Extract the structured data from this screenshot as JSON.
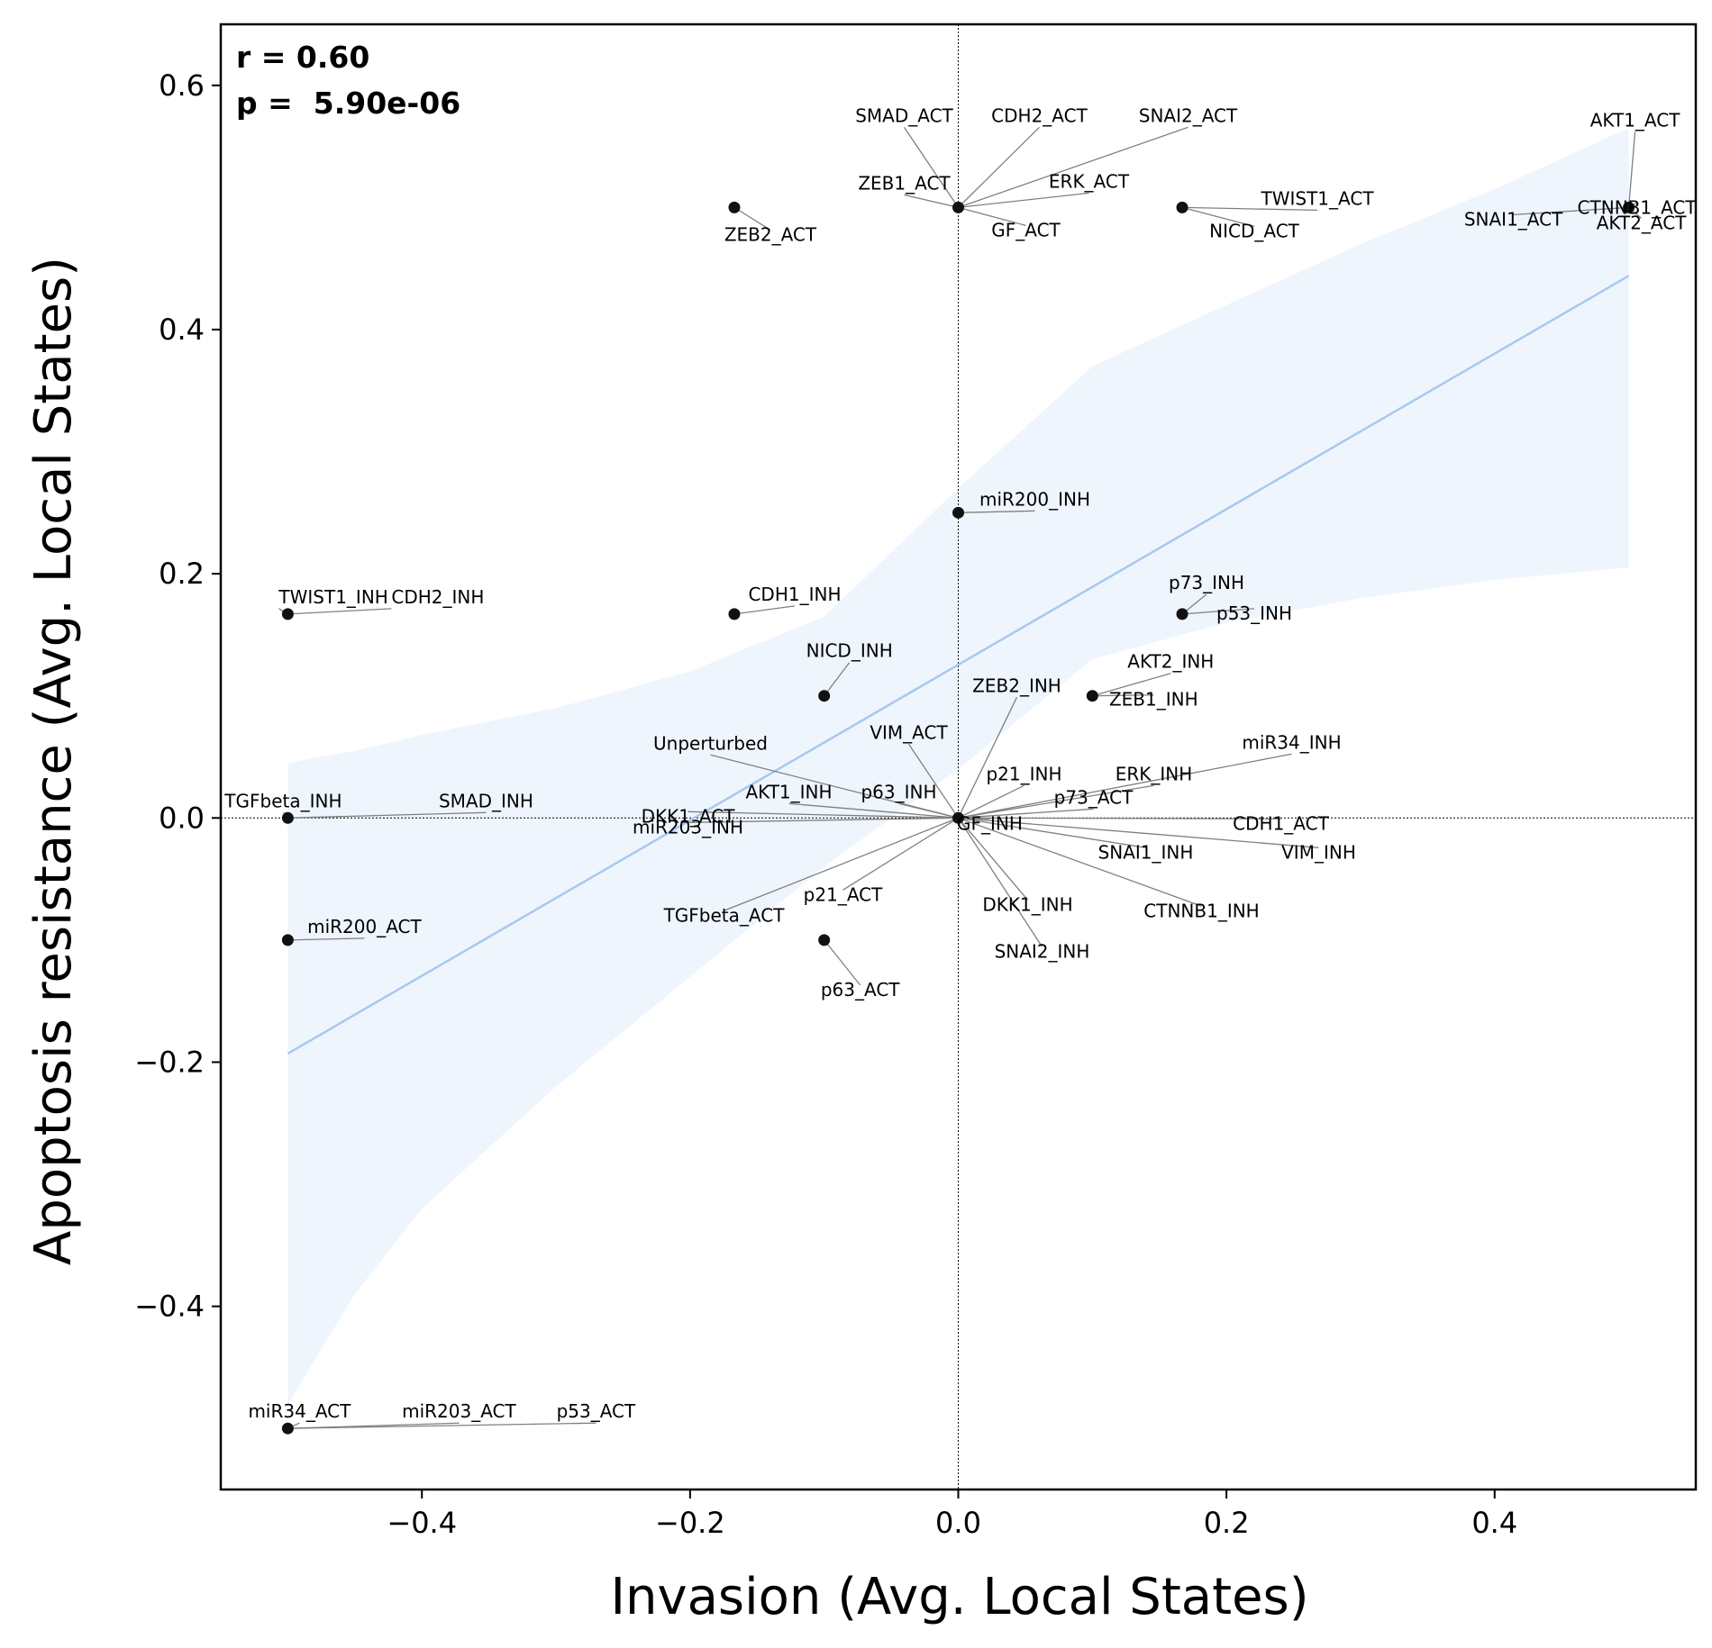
{
  "chart_data": {
    "type": "scatter",
    "title": "",
    "xlabel": "Invasion (Avg. Local States)",
    "ylabel": "Apoptosis resistance (Avg. Local States)",
    "xlim": [
      -0.55,
      0.55
    ],
    "ylim": [
      -0.55,
      0.65
    ],
    "xticks": [
      -0.4,
      -0.2,
      0.0,
      0.2,
      0.4
    ],
    "yticks": [
      -0.4,
      -0.2,
      0.0,
      0.2,
      0.4,
      0.6
    ],
    "xtick_labels": [
      "−0.4",
      "−0.2",
      "0.0",
      "0.2",
      "0.4"
    ],
    "ytick_labels": [
      "−0.4",
      "−0.2",
      "0.0",
      "0.2",
      "0.4",
      "0.6"
    ],
    "annotation_lines": [
      {
        "text": "r = 0.60"
      },
      {
        "text": "p =  5.90e-06"
      }
    ],
    "reference_lines": {
      "x": 0.0,
      "y": 0.0
    },
    "regression": {
      "line": {
        "x": [
          -0.5,
          0.5
        ],
        "y": [
          -0.193,
          0.444
        ],
        "color": "#a8c8f0"
      },
      "ci_band": {
        "color": "#dce8fb",
        "x": [
          -0.5,
          -0.45,
          -0.4,
          -0.3,
          -0.2,
          -0.1,
          0.0,
          0.1,
          0.2,
          0.3,
          0.4,
          0.5
        ],
        "lower": [
          -0.48,
          -0.39,
          -0.32,
          -0.22,
          -0.13,
          -0.04,
          0.04,
          0.13,
          0.16,
          0.18,
          0.195,
          0.205
        ],
        "upper": [
          0.045,
          0.055,
          0.068,
          0.09,
          0.12,
          0.165,
          0.27,
          0.37,
          0.42,
          0.47,
          0.515,
          0.565
        ]
      }
    },
    "points": [
      {
        "label": "SMAD_ACT",
        "x": 0.0,
        "y": 0.5
      },
      {
        "label": "CDH2_ACT",
        "x": 0.0,
        "y": 0.5
      },
      {
        "label": "SNAI2_ACT",
        "x": 0.0,
        "y": 0.5
      },
      {
        "label": "ZEB1_ACT",
        "x": 0.0,
        "y": 0.5
      },
      {
        "label": "ERK_ACT",
        "x": 0.0,
        "y": 0.5
      },
      {
        "label": "GF_ACT",
        "x": 0.0,
        "y": 0.5
      },
      {
        "label": "ZEB2_ACT",
        "x": -0.167,
        "y": 0.5
      },
      {
        "label": "TWIST1_ACT",
        "x": 0.167,
        "y": 0.5
      },
      {
        "label": "NICD_ACT",
        "x": 0.167,
        "y": 0.5
      },
      {
        "label": "AKT1_ACT",
        "x": 0.5,
        "y": 0.5
      },
      {
        "label": "CTNNB1_ACT",
        "x": 0.5,
        "y": 0.5
      },
      {
        "label": "SNAI1_ACT",
        "x": 0.5,
        "y": 0.5
      },
      {
        "label": "AKT2_ACT",
        "x": 0.5,
        "y": 0.5
      },
      {
        "label": "miR200_INH",
        "x": 0.0,
        "y": 0.25
      },
      {
        "label": "TWIST1_INH",
        "x": -0.5,
        "y": 0.167
      },
      {
        "label": "CDH2_INH",
        "x": -0.5,
        "y": 0.167
      },
      {
        "label": "CDH1_INH",
        "x": -0.167,
        "y": 0.167
      },
      {
        "label": "p73_INH",
        "x": 0.167,
        "y": 0.167
      },
      {
        "label": "p53_INH",
        "x": 0.167,
        "y": 0.167
      },
      {
        "label": "NICD_INH",
        "x": -0.1,
        "y": 0.1
      },
      {
        "label": "AKT2_INH",
        "x": 0.1,
        "y": 0.1
      },
      {
        "label": "ZEB1_INH",
        "x": 0.1,
        "y": 0.1
      },
      {
        "label": "ZEB2_INH",
        "x": 0.0,
        "y": 0.0
      },
      {
        "label": "Unperturbed",
        "x": 0.0,
        "y": 0.0
      },
      {
        "label": "VIM_ACT",
        "x": 0.0,
        "y": 0.0
      },
      {
        "label": "miR34_INH",
        "x": 0.0,
        "y": 0.0
      },
      {
        "label": "p21_INH",
        "x": 0.0,
        "y": 0.0
      },
      {
        "label": "ERK_INH",
        "x": 0.0,
        "y": 0.0
      },
      {
        "label": "AKT1_INH",
        "x": 0.0,
        "y": 0.0
      },
      {
        "label": "p63_INH",
        "x": 0.0,
        "y": 0.0
      },
      {
        "label": "p73_ACT",
        "x": 0.0,
        "y": 0.0
      },
      {
        "label": "DKK1_ACT",
        "x": 0.0,
        "y": 0.0
      },
      {
        "label": "miR203_INH",
        "x": 0.0,
        "y": 0.0
      },
      {
        "label": "GF_INH",
        "x": 0.0,
        "y": 0.0
      },
      {
        "label": "CDH1_ACT",
        "x": 0.0,
        "y": 0.0
      },
      {
        "label": "SNAI1_INH",
        "x": 0.0,
        "y": 0.0
      },
      {
        "label": "VIM_INH",
        "x": 0.0,
        "y": 0.0
      },
      {
        "label": "DKK1_INH",
        "x": 0.0,
        "y": 0.0
      },
      {
        "label": "CTNNB1_INH",
        "x": 0.0,
        "y": 0.0
      },
      {
        "label": "SNAI2_INH",
        "x": 0.0,
        "y": 0.0
      },
      {
        "label": "TGFbeta_ACT",
        "x": 0.0,
        "y": 0.0
      },
      {
        "label": "p21_ACT",
        "x": 0.0,
        "y": 0.0
      },
      {
        "label": "TGFbeta_INH",
        "x": -0.5,
        "y": 0.0
      },
      {
        "label": "SMAD_INH",
        "x": -0.5,
        "y": 0.0
      },
      {
        "label": "miR200_ACT",
        "x": -0.5,
        "y": -0.1
      },
      {
        "label": "p63_ACT",
        "x": -0.1,
        "y": -0.1
      },
      {
        "label": "miR34_ACT",
        "x": -0.5,
        "y": -0.5
      },
      {
        "label": "miR203_ACT",
        "x": -0.5,
        "y": -0.5
      },
      {
        "label": "p53_ACT",
        "x": -0.5,
        "y": -0.5
      }
    ],
    "grid": false,
    "legend": "none"
  }
}
